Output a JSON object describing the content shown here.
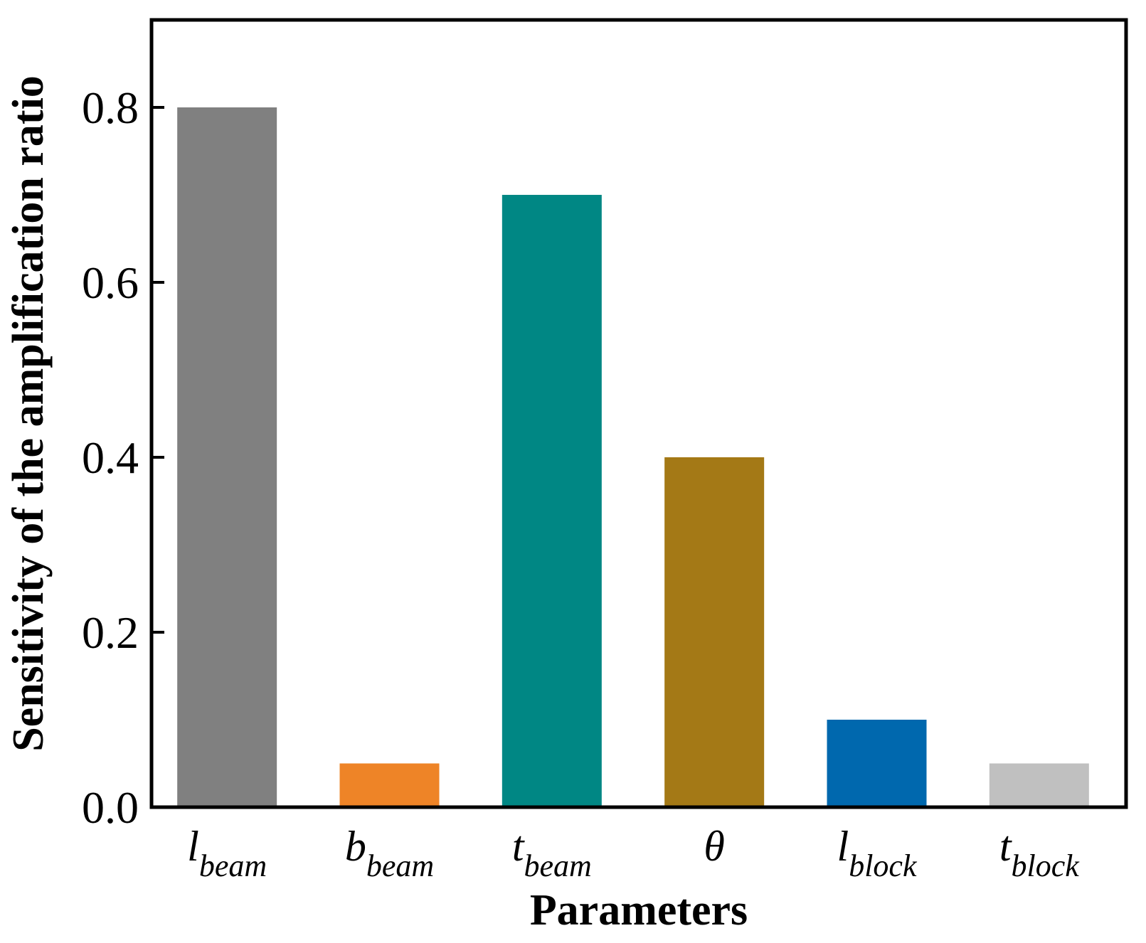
{
  "chart_data": {
    "type": "bar",
    "categories": [
      {
        "main": "l",
        "sub": "beam"
      },
      {
        "main": "b",
        "sub": "beam"
      },
      {
        "main": "t",
        "sub": "beam"
      },
      {
        "main": "θ",
        "sub": ""
      },
      {
        "main": "l",
        "sub": "block"
      },
      {
        "main": "t",
        "sub": "block"
      }
    ],
    "values": [
      0.8,
      0.05,
      0.7,
      0.4,
      0.1,
      0.05
    ],
    "colors": [
      "#808080",
      "#ee8427",
      "#008784",
      "#a47916",
      "#0068ae",
      "#c0c0c0"
    ],
    "xlabel": "Parameters",
    "ylabel": "Sensitivity of the amplification ratio",
    "ylim": [
      0,
      0.9
    ],
    "yticks": [
      {
        "value": 0.0,
        "label": "0.0"
      },
      {
        "value": 0.2,
        "label": "0.2"
      },
      {
        "value": 0.4,
        "label": "0.4"
      },
      {
        "value": 0.6,
        "label": "0.6"
      },
      {
        "value": 0.8,
        "label": "0.8"
      }
    ],
    "grid": false,
    "legend": "none"
  }
}
